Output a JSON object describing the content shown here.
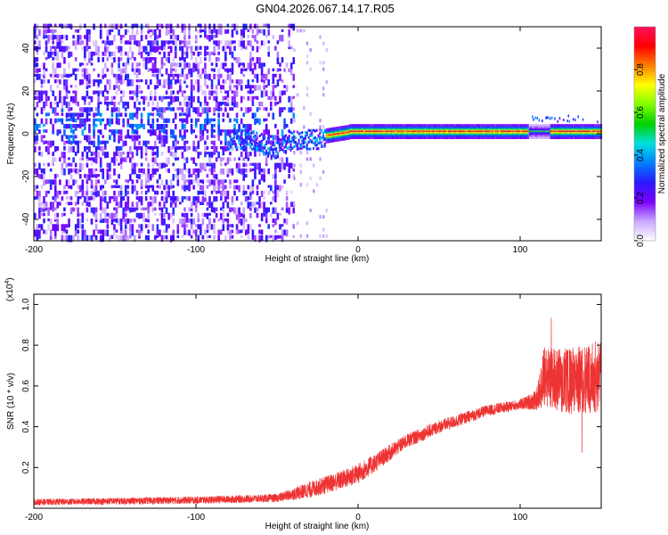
{
  "title": "GN04.2026.067.14.17.R05",
  "chart_data": [
    {
      "type": "heatmap",
      "name": "spectrogram",
      "xlabel": "Height of straight line (km)",
      "ylabel": "Frequency (Hz)",
      "xlim": [
        -200,
        150
      ],
      "ylim": [
        -50,
        50
      ],
      "xticks": [
        -200,
        -100,
        0,
        100
      ],
      "xtick_labels": [
        "-200",
        "-100",
        "0",
        "100"
      ],
      "yticks": [
        -40,
        -20,
        0,
        20,
        40
      ],
      "ytick_labels": [
        "-40",
        "-20",
        "0",
        "20",
        "40"
      ],
      "colorbar": {
        "label": "Normalized spectral amplitude",
        "range": [
          0,
          1
        ],
        "ticks": [
          0.0,
          0.2,
          0.4,
          0.6,
          0.8
        ],
        "tick_labels": [
          "0.0",
          "0.2",
          "0.4",
          "0.6",
          "0.8"
        ],
        "colormap": [
          "#ffffff",
          "#c9a8ff",
          "#7a00ff",
          "#2a1aff",
          "#0080ff",
          "#00e0e0",
          "#00d000",
          "#80ff00",
          "#ffff00",
          "#ff8000",
          "#ff0000",
          "#ff1060"
        ]
      },
      "description_bands": [
        {
          "x_range": [
            -200,
            -40
          ],
          "texture": "noise",
          "amplitude": [
            0.05,
            0.3
          ]
        },
        {
          "x_range": [
            -80,
            -20
          ],
          "center_freq": -3,
          "amplitude": [
            0.15,
            0.45
          ]
        },
        {
          "x_range": [
            -20,
            150
          ],
          "center_freq": 1,
          "amplitude": [
            0.3,
            1.0
          ]
        }
      ]
    },
    {
      "type": "line",
      "name": "snr",
      "xlabel": "Height of straight line (km)",
      "ylabel": "SNR (10 * v/v)",
      "yscale_label": "(x10",
      "yscale_exp": "4",
      "xlim": [
        -200,
        150
      ],
      "ylim": [
        0,
        1.05
      ],
      "xticks": [
        -200,
        -100,
        0,
        100
      ],
      "xtick_labels": [
        "-200",
        "-100",
        "0",
        "100"
      ],
      "yticks": [
        0.2,
        0.4,
        0.6,
        0.8,
        1.0
      ],
      "ytick_labels": [
        "0.2",
        "0.4",
        "0.6",
        "0.8",
        "1.0"
      ],
      "color": "#ee3333",
      "trend": {
        "x": [
          -200,
          -150,
          -100,
          -50,
          -30,
          -10,
          0,
          10,
          30,
          50,
          80,
          100,
          110,
          115,
          130,
          150
        ],
        "y": [
          0.03,
          0.035,
          0.04,
          0.05,
          0.09,
          0.14,
          0.17,
          0.22,
          0.33,
          0.4,
          0.48,
          0.51,
          0.53,
          0.65,
          0.62,
          0.65
        ]
      },
      "noise": {
        "x": [
          -200,
          -50,
          -30,
          0,
          30,
          100,
          110,
          115,
          150
        ],
        "amplitude": [
          0.015,
          0.02,
          0.04,
          0.05,
          0.035,
          0.025,
          0.05,
          0.15,
          0.18
        ]
      }
    }
  ]
}
